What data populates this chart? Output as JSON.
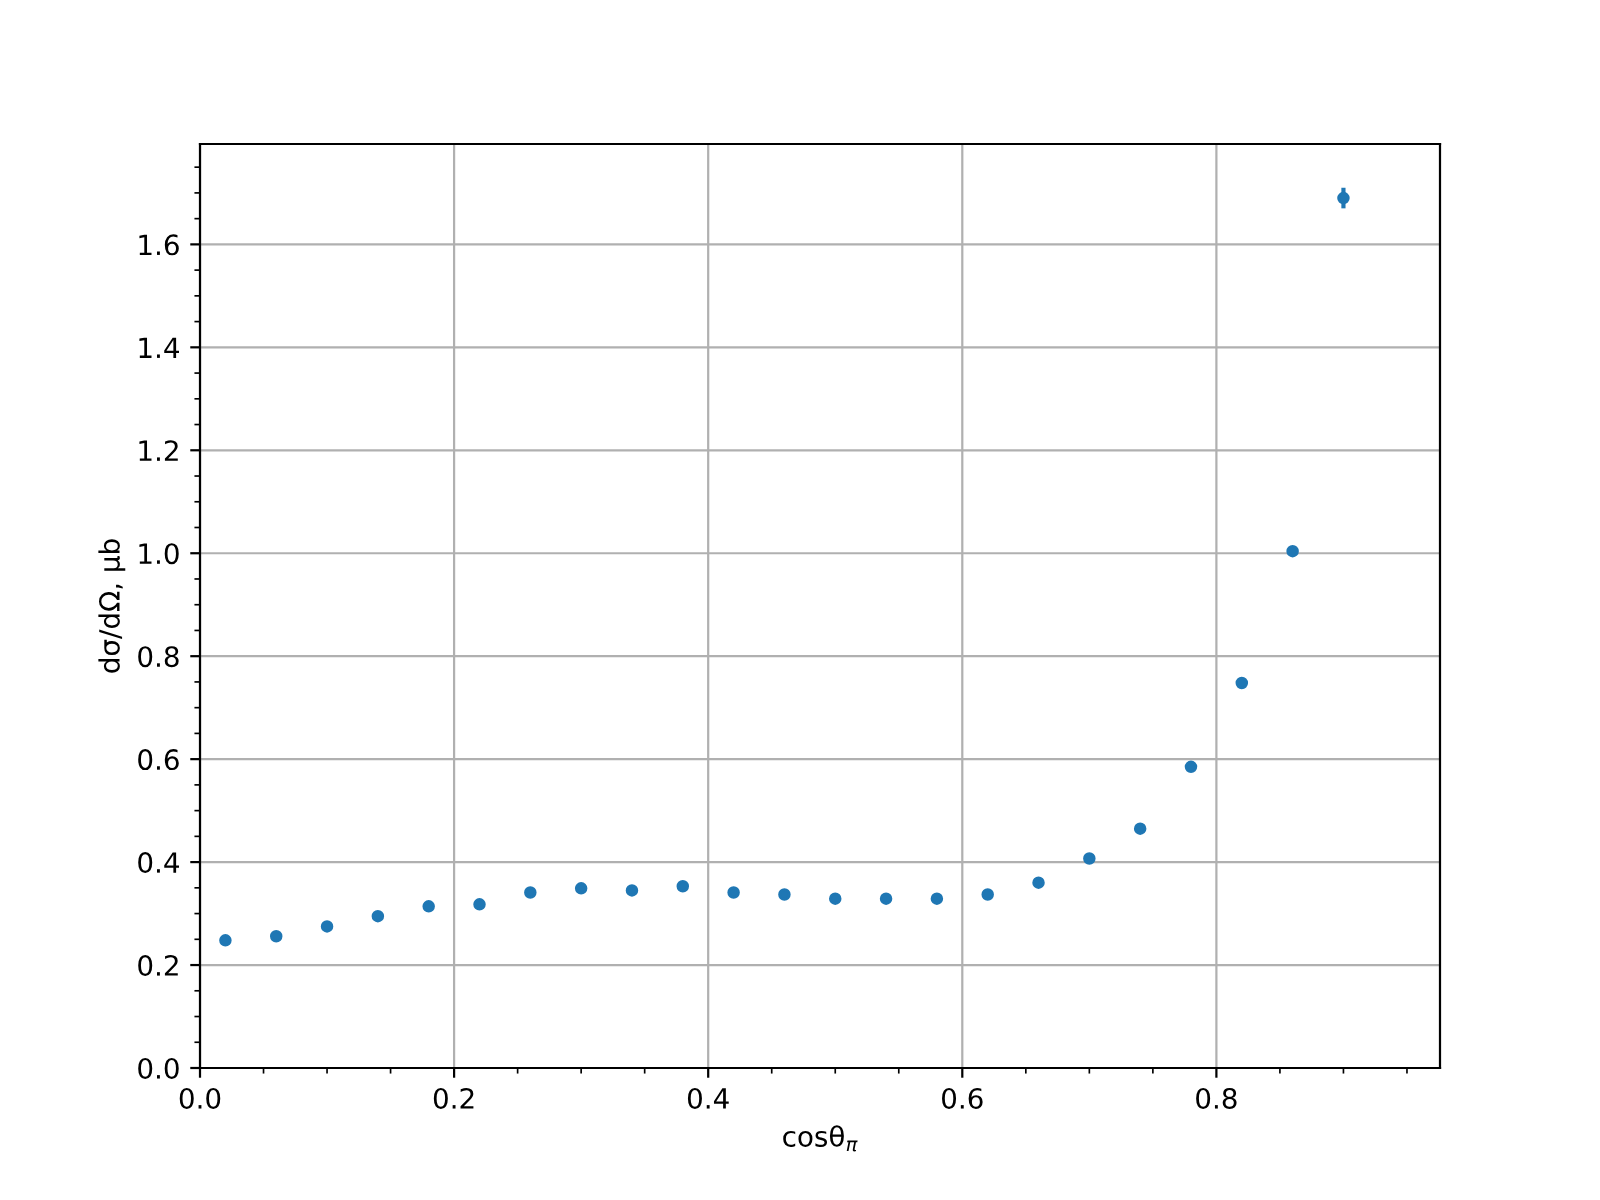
{
  "chart_data": {
    "type": "scatter",
    "xlabel": "cosθ$_{π}$",
    "ylabel": "dσ/dΩ, μb",
    "x": [
      0.02,
      0.06,
      0.1,
      0.14,
      0.18,
      0.22,
      0.26,
      0.3,
      0.34,
      0.38,
      0.42,
      0.46,
      0.5,
      0.54,
      0.58,
      0.62,
      0.66,
      0.7,
      0.74,
      0.78,
      0.82,
      0.86,
      0.9
    ],
    "series": [
      {
        "color": "#1f77b4",
        "values": [
          0.248,
          0.256,
          0.275,
          0.295,
          0.314,
          0.318,
          0.341,
          0.349,
          0.345,
          0.353,
          0.341,
          0.337,
          0.329,
          0.329,
          0.329,
          0.337,
          0.36,
          0.407,
          0.465,
          0.585,
          0.748,
          1.004,
          1.69
        ],
        "errors": [
          null,
          null,
          null,
          null,
          null,
          null,
          null,
          null,
          null,
          null,
          null,
          null,
          null,
          null,
          null,
          null,
          null,
          null,
          null,
          null,
          null,
          null,
          0.02
        ]
      }
    ],
    "xlim": [
      0,
      0.976
    ],
    "ylim": [
      0,
      1.795
    ],
    "xticks": [
      {
        "value": 0,
        "label": "0.0"
      },
      0.2,
      0.4,
      0.6,
      0.8
    ],
    "yticks": [
      {
        "value": 0,
        "label": "0.0"
      },
      0.2,
      0.4,
      0.6,
      0.8,
      {
        "value": 1,
        "label": "1.0"
      },
      1.2,
      1.4,
      1.6
    ],
    "grid": true,
    "marker": "circle"
  }
}
